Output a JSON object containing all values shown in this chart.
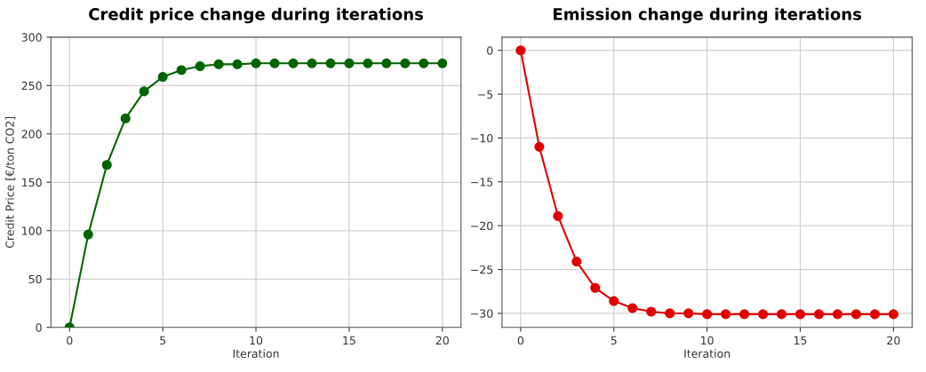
{
  "chart_data": [
    {
      "type": "line",
      "title": "Credit price change during iterations",
      "xlabel": "Iteration",
      "ylabel": "Credit Price [€/ton CO2]",
      "x": [
        0,
        1,
        2,
        3,
        4,
        5,
        6,
        7,
        8,
        9,
        10,
        11,
        12,
        13,
        14,
        15,
        16,
        17,
        18,
        19,
        20
      ],
      "series": [
        {
          "color": "#006400",
          "values": [
            0,
            96,
            168,
            216,
            244,
            259,
            266,
            270,
            272,
            272,
            273,
            273,
            273,
            273,
            273,
            273,
            273,
            273,
            273,
            273,
            273
          ]
        }
      ],
      "xlim": [
        -1,
        21
      ],
      "xticks": [
        0,
        5,
        10,
        15,
        20
      ],
      "ylim": [
        0,
        300
      ],
      "yticks": [
        0,
        50,
        100,
        150,
        200,
        250,
        300
      ],
      "grid": true,
      "marker": "circle",
      "line_style": "solid",
      "legend": false
    },
    {
      "type": "line",
      "title": "Emission change during iterations",
      "xlabel": "Iteration",
      "x": [
        0,
        1,
        2,
        3,
        4,
        5,
        6,
        7,
        8,
        9,
        10,
        11,
        12,
        13,
        14,
        15,
        16,
        17,
        18,
        19,
        20
      ],
      "series": [
        {
          "color": "#e00000",
          "values": [
            0,
            -11,
            -18.9,
            -24.1,
            -27.1,
            -28.6,
            -29.4,
            -29.8,
            -30,
            -30,
            -30.1,
            -30.1,
            -30.1,
            -30.1,
            -30.1,
            -30.1,
            -30.1,
            -30.1,
            -30.1,
            -30.1,
            -30.1
          ]
        }
      ],
      "xlim": [
        -1,
        21
      ],
      "xticks": [
        0,
        5,
        10,
        15,
        20
      ],
      "ylim": [
        -31.6,
        1.5
      ],
      "yticks": [
        {
          "value": 0,
          "label": "0"
        },
        {
          "value": -5,
          "label": "−5"
        },
        {
          "value": -10,
          "label": "−10"
        },
        {
          "value": -15,
          "label": "−15"
        },
        {
          "value": -20,
          "label": "−20"
        },
        {
          "value": -25,
          "label": "−25"
        },
        {
          "value": -30,
          "label": "−30"
        }
      ],
      "grid": true,
      "marker": "circle",
      "line_style": "solid",
      "legend": false
    }
  ]
}
